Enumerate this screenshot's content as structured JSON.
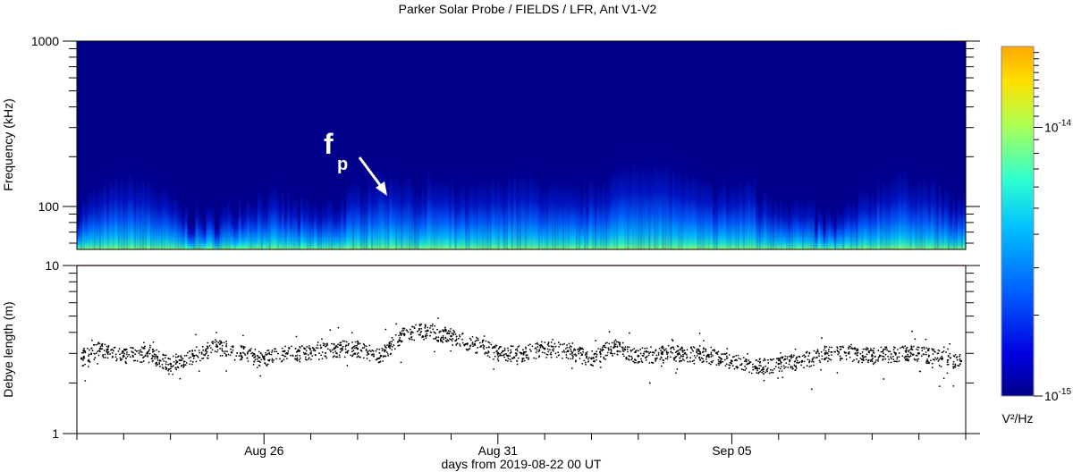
{
  "chart_data": [
    {
      "type": "heatmap",
      "title": "Parker Solar Probe / FIELDS / LFR, Ant V1-V2",
      "ylabel": "Frequency (kHz)",
      "yscale": "log",
      "ylim": [
        55,
        1000
      ],
      "ytick_labels": [
        "100",
        "1000"
      ],
      "ytick_values": [
        100,
        1000
      ],
      "colorbar": {
        "label": "V²/Hz",
        "scale": "log",
        "range": [
          1e-15,
          2e-14
        ],
        "tick_values": [
          1e-15,
          1e-14
        ],
        "tick_labels": [
          "10-15",
          "10-14"
        ],
        "colormap": [
          "#00008c",
          "#0000ff",
          "#0070ff",
          "#00d0ff",
          "#40ffc0",
          "#c0ff40",
          "#ffd000",
          "#ffa000"
        ]
      },
      "annotation": {
        "text": "f",
        "subscript": "p",
        "arrow_points_to_day": 26.9
      }
    },
    {
      "type": "scatter",
      "ylabel": "Debye length (m)",
      "yscale": "log",
      "ylim": [
        1,
        10
      ],
      "ytick_labels": [
        "1",
        "10"
      ],
      "ytick_values": [
        1,
        10
      ],
      "x_axis": {
        "label": "days from 2019-08-22 00 UT",
        "range_days": [
          22,
          41
        ],
        "tick_labels": [
          "Aug 26",
          "Aug 31",
          "Sep 05"
        ],
        "tick_days": [
          26,
          31,
          36
        ]
      },
      "series": [
        {
          "color": "#000000",
          "days": [
            22.1,
            22.5,
            23.0,
            23.5,
            24.0,
            24.5,
            25.0,
            25.5,
            26.0,
            26.5,
            27.0,
            27.5,
            28.0,
            28.5,
            29.0,
            29.5,
            30.0,
            30.5,
            31.0,
            31.5,
            32.0,
            32.5,
            33.0,
            33.5,
            34.0,
            34.5,
            35.0,
            35.5,
            36.0,
            36.5,
            37.0,
            37.5,
            38.0,
            38.5,
            39.0,
            39.5,
            40.0,
            40.5,
            40.9
          ],
          "debye_m": [
            2.8,
            3.2,
            2.9,
            3.0,
            2.6,
            2.9,
            3.3,
            3.0,
            2.8,
            3.0,
            3.0,
            3.2,
            3.2,
            2.9,
            3.9,
            4.1,
            3.8,
            3.4,
            3.0,
            3.0,
            3.2,
            3.1,
            2.8,
            3.3,
            2.9,
            3.0,
            3.0,
            2.9,
            2.7,
            2.5,
            2.6,
            2.7,
            3.0,
            3.0,
            2.9,
            3.0,
            3.0,
            2.8,
            2.7
          ]
        }
      ]
    }
  ]
}
